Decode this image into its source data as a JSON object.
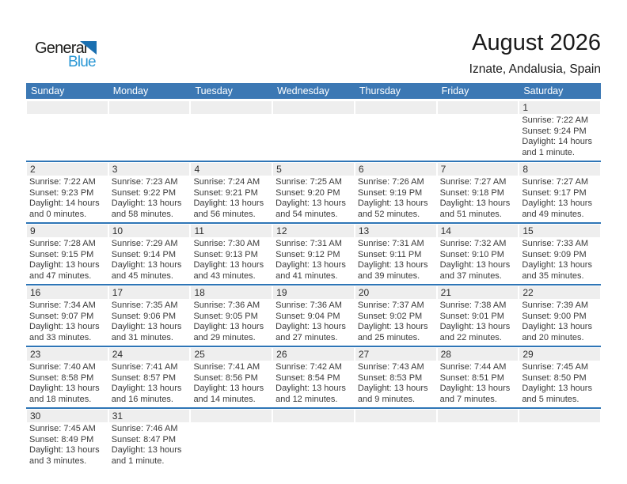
{
  "logo": {
    "part1": "General",
    "part2": "Blue"
  },
  "header": {
    "title": "August 2026",
    "subtitle": "Iznate, Andalusia, Spain"
  },
  "colors": {
    "header_bg": "#3c78b4",
    "divider": "#2e75b6",
    "strip_bg": "#eeeeee",
    "logo_blue": "#2a97d4",
    "logo_triangle": "#1a6fb0"
  },
  "weekdays": [
    "Sunday",
    "Monday",
    "Tuesday",
    "Wednesday",
    "Thursday",
    "Friday",
    "Saturday"
  ],
  "weeks": [
    [
      null,
      null,
      null,
      null,
      null,
      null,
      {
        "day": "1",
        "sunrise": "Sunrise: 7:22 AM",
        "sunset": "Sunset: 9:24 PM",
        "daylight": "Daylight: 14 hours and 1 minute."
      }
    ],
    [
      {
        "day": "2",
        "sunrise": "Sunrise: 7:22 AM",
        "sunset": "Sunset: 9:23 PM",
        "daylight": "Daylight: 14 hours and 0 minutes."
      },
      {
        "day": "3",
        "sunrise": "Sunrise: 7:23 AM",
        "sunset": "Sunset: 9:22 PM",
        "daylight": "Daylight: 13 hours and 58 minutes."
      },
      {
        "day": "4",
        "sunrise": "Sunrise: 7:24 AM",
        "sunset": "Sunset: 9:21 PM",
        "daylight": "Daylight: 13 hours and 56 minutes."
      },
      {
        "day": "5",
        "sunrise": "Sunrise: 7:25 AM",
        "sunset": "Sunset: 9:20 PM",
        "daylight": "Daylight: 13 hours and 54 minutes."
      },
      {
        "day": "6",
        "sunrise": "Sunrise: 7:26 AM",
        "sunset": "Sunset: 9:19 PM",
        "daylight": "Daylight: 13 hours and 52 minutes."
      },
      {
        "day": "7",
        "sunrise": "Sunrise: 7:27 AM",
        "sunset": "Sunset: 9:18 PM",
        "daylight": "Daylight: 13 hours and 51 minutes."
      },
      {
        "day": "8",
        "sunrise": "Sunrise: 7:27 AM",
        "sunset": "Sunset: 9:17 PM",
        "daylight": "Daylight: 13 hours and 49 minutes."
      }
    ],
    [
      {
        "day": "9",
        "sunrise": "Sunrise: 7:28 AM",
        "sunset": "Sunset: 9:15 PM",
        "daylight": "Daylight: 13 hours and 47 minutes."
      },
      {
        "day": "10",
        "sunrise": "Sunrise: 7:29 AM",
        "sunset": "Sunset: 9:14 PM",
        "daylight": "Daylight: 13 hours and 45 minutes."
      },
      {
        "day": "11",
        "sunrise": "Sunrise: 7:30 AM",
        "sunset": "Sunset: 9:13 PM",
        "daylight": "Daylight: 13 hours and 43 minutes."
      },
      {
        "day": "12",
        "sunrise": "Sunrise: 7:31 AM",
        "sunset": "Sunset: 9:12 PM",
        "daylight": "Daylight: 13 hours and 41 minutes."
      },
      {
        "day": "13",
        "sunrise": "Sunrise: 7:31 AM",
        "sunset": "Sunset: 9:11 PM",
        "daylight": "Daylight: 13 hours and 39 minutes."
      },
      {
        "day": "14",
        "sunrise": "Sunrise: 7:32 AM",
        "sunset": "Sunset: 9:10 PM",
        "daylight": "Daylight: 13 hours and 37 minutes."
      },
      {
        "day": "15",
        "sunrise": "Sunrise: 7:33 AM",
        "sunset": "Sunset: 9:09 PM",
        "daylight": "Daylight: 13 hours and 35 minutes."
      }
    ],
    [
      {
        "day": "16",
        "sunrise": "Sunrise: 7:34 AM",
        "sunset": "Sunset: 9:07 PM",
        "daylight": "Daylight: 13 hours and 33 minutes."
      },
      {
        "day": "17",
        "sunrise": "Sunrise: 7:35 AM",
        "sunset": "Sunset: 9:06 PM",
        "daylight": "Daylight: 13 hours and 31 minutes."
      },
      {
        "day": "18",
        "sunrise": "Sunrise: 7:36 AM",
        "sunset": "Sunset: 9:05 PM",
        "daylight": "Daylight: 13 hours and 29 minutes."
      },
      {
        "day": "19",
        "sunrise": "Sunrise: 7:36 AM",
        "sunset": "Sunset: 9:04 PM",
        "daylight": "Daylight: 13 hours and 27 minutes."
      },
      {
        "day": "20",
        "sunrise": "Sunrise: 7:37 AM",
        "sunset": "Sunset: 9:02 PM",
        "daylight": "Daylight: 13 hours and 25 minutes."
      },
      {
        "day": "21",
        "sunrise": "Sunrise: 7:38 AM",
        "sunset": "Sunset: 9:01 PM",
        "daylight": "Daylight: 13 hours and 22 minutes."
      },
      {
        "day": "22",
        "sunrise": "Sunrise: 7:39 AM",
        "sunset": "Sunset: 9:00 PM",
        "daylight": "Daylight: 13 hours and 20 minutes."
      }
    ],
    [
      {
        "day": "23",
        "sunrise": "Sunrise: 7:40 AM",
        "sunset": "Sunset: 8:58 PM",
        "daylight": "Daylight: 13 hours and 18 minutes."
      },
      {
        "day": "24",
        "sunrise": "Sunrise: 7:41 AM",
        "sunset": "Sunset: 8:57 PM",
        "daylight": "Daylight: 13 hours and 16 minutes."
      },
      {
        "day": "25",
        "sunrise": "Sunrise: 7:41 AM",
        "sunset": "Sunset: 8:56 PM",
        "daylight": "Daylight: 13 hours and 14 minutes."
      },
      {
        "day": "26",
        "sunrise": "Sunrise: 7:42 AM",
        "sunset": "Sunset: 8:54 PM",
        "daylight": "Daylight: 13 hours and 12 minutes."
      },
      {
        "day": "27",
        "sunrise": "Sunrise: 7:43 AM",
        "sunset": "Sunset: 8:53 PM",
        "daylight": "Daylight: 13 hours and 9 minutes."
      },
      {
        "day": "28",
        "sunrise": "Sunrise: 7:44 AM",
        "sunset": "Sunset: 8:51 PM",
        "daylight": "Daylight: 13 hours and 7 minutes."
      },
      {
        "day": "29",
        "sunrise": "Sunrise: 7:45 AM",
        "sunset": "Sunset: 8:50 PM",
        "daylight": "Daylight: 13 hours and 5 minutes."
      }
    ],
    [
      {
        "day": "30",
        "sunrise": "Sunrise: 7:45 AM",
        "sunset": "Sunset: 8:49 PM",
        "daylight": "Daylight: 13 hours and 3 minutes."
      },
      {
        "day": "31",
        "sunrise": "Sunrise: 7:46 AM",
        "sunset": "Sunset: 8:47 PM",
        "daylight": "Daylight: 13 hours and 1 minute."
      },
      null,
      null,
      null,
      null,
      null
    ]
  ]
}
